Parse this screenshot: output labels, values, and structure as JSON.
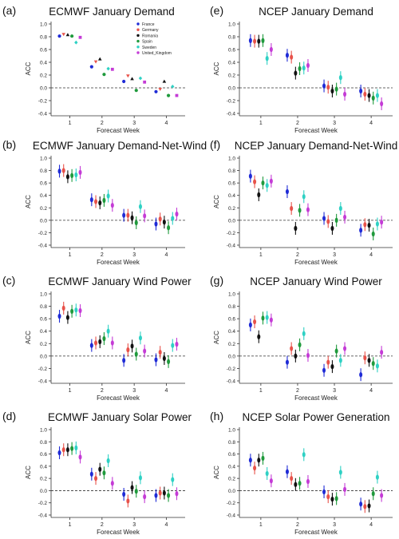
{
  "chart_data": [
    {
      "panel_label": "(a)",
      "title": "ECMWF January Demand",
      "type": "scatter",
      "style": "markers",
      "categories": [
        "1",
        "2",
        "3",
        "4"
      ],
      "xlabel": "Forecast Week",
      "ylabel": "ACC",
      "ylim": [
        -0.4,
        1.0
      ],
      "yticks": [
        -0.4,
        -0.2,
        0.0,
        0.2,
        0.4,
        0.6,
        0.8,
        1.0
      ],
      "zero_line": "dashed",
      "legend": {
        "position": "top-right",
        "entries": [
          "France",
          "Germany",
          "Romania",
          "Spain",
          "Sweden",
          "United_Kingdom"
        ]
      },
      "series": [
        {
          "name": "France",
          "values": [
            0.81,
            0.33,
            0.1,
            -0.06
          ]
        },
        {
          "name": "Germany",
          "values": [
            0.84,
            0.41,
            0.19,
            -0.02
          ]
        },
        {
          "name": "Romania",
          "values": [
            0.83,
            0.45,
            0.14,
            0.1
          ]
        },
        {
          "name": "Spain",
          "values": [
            0.81,
            0.21,
            -0.04,
            -0.12
          ]
        },
        {
          "name": "Sweden",
          "values": [
            0.71,
            0.3,
            0.15,
            0.02
          ]
        },
        {
          "name": "United_Kingdom",
          "values": [
            0.79,
            0.29,
            0.09,
            -0.12
          ]
        }
      ]
    },
    {
      "panel_label": "(e)",
      "title": "NCEP January Demand",
      "type": "scatter",
      "style": "errorbar",
      "categories": [
        "1",
        "2",
        "3",
        "4"
      ],
      "xlabel": "Forecast Week",
      "ylabel": "ACC",
      "ylim": [
        -0.4,
        1.0
      ],
      "yticks": [
        -0.4,
        -0.2,
        0.0,
        0.2,
        0.4,
        0.6,
        0.8,
        1.0
      ],
      "zero_line": "dashed",
      "series": [
        {
          "values": [
            0.74,
            0.51,
            0.03,
            -0.05
          ]
        },
        {
          "values": [
            0.73,
            0.48,
            0.01,
            -0.1
          ]
        },
        {
          "values": [
            0.73,
            0.23,
            -0.05,
            -0.12
          ]
        },
        {
          "values": [
            0.74,
            0.3,
            -0.02,
            -0.16
          ]
        },
        {
          "values": [
            0.46,
            0.31,
            0.16,
            -0.12
          ]
        },
        {
          "values": [
            0.6,
            0.35,
            -0.1,
            -0.25
          ]
        }
      ]
    },
    {
      "panel_label": "(b)",
      "title": "ECMWF January Demand-Net-Wind",
      "type": "scatter",
      "style": "errorbar",
      "categories": [
        "1",
        "2",
        "3",
        "4"
      ],
      "xlabel": "Forecast Week",
      "ylabel": "ACC",
      "ylim": [
        -0.4,
        1.0
      ],
      "yticks": [
        -0.4,
        -0.2,
        0.0,
        0.2,
        0.4,
        0.6,
        0.8,
        1.0
      ],
      "zero_line": "dashed",
      "series": [
        {
          "values": [
            0.79,
            0.33,
            0.08,
            -0.06
          ]
        },
        {
          "values": [
            0.8,
            0.3,
            0.08,
            0.02
          ]
        },
        {
          "values": [
            0.7,
            0.28,
            0.04,
            -0.03
          ]
        },
        {
          "values": [
            0.72,
            0.32,
            -0.04,
            -0.12
          ]
        },
        {
          "values": [
            0.73,
            0.39,
            0.22,
            0.03
          ]
        },
        {
          "values": [
            0.77,
            0.24,
            0.07,
            0.1
          ]
        }
      ]
    },
    {
      "panel_label": "(f)",
      "title": "NCEP January Demand-Net-Wind",
      "type": "scatter",
      "style": "errorbar",
      "categories": [
        "1",
        "2",
        "3",
        "4"
      ],
      "xlabel": "Forecast Week",
      "ylabel": "ACC",
      "ylim": [
        -0.4,
        1.0
      ],
      "yticks": [
        -0.4,
        -0.2,
        0.0,
        0.2,
        0.4,
        0.6,
        0.8,
        1.0
      ],
      "zero_line": "dashed",
      "series": [
        {
          "values": [
            0.71,
            0.46,
            0.03,
            -0.16
          ]
        },
        {
          "values": [
            0.62,
            0.19,
            -0.02,
            -0.07
          ]
        },
        {
          "values": [
            0.41,
            -0.13,
            -0.13,
            -0.08
          ]
        },
        {
          "values": [
            0.6,
            0.16,
            0.0,
            -0.22
          ]
        },
        {
          "values": [
            0.56,
            0.38,
            0.19,
            -0.06
          ]
        },
        {
          "values": [
            0.63,
            0.17,
            0.05,
            -0.03
          ]
        }
      ]
    },
    {
      "panel_label": "(c)",
      "title": "ECMWF January Wind Power",
      "type": "scatter",
      "style": "errorbar",
      "categories": [
        "1",
        "2",
        "3",
        "4"
      ],
      "xlabel": "Forecast Week",
      "ylabel": "ACC",
      "ylim": [
        -0.4,
        1.0
      ],
      "yticks": [
        -0.4,
        -0.2,
        0.0,
        0.2,
        0.4,
        0.6,
        0.8,
        1.0
      ],
      "zero_line": "dashed",
      "series": [
        {
          "values": [
            0.64,
            0.17,
            -0.07,
            -0.06
          ]
        },
        {
          "values": [
            0.77,
            0.21,
            0.1,
            0.06
          ]
        },
        {
          "values": [
            0.62,
            0.23,
            0.16,
            -0.04
          ]
        },
        {
          "values": [
            0.72,
            0.28,
            0.03,
            -0.09
          ]
        },
        {
          "values": [
            0.74,
            0.4,
            0.29,
            0.17
          ]
        },
        {
          "values": [
            0.73,
            0.21,
            0.08,
            0.19
          ]
        }
      ]
    },
    {
      "panel_label": "(g)",
      "title": "NCEP January Wind Power",
      "type": "scatter",
      "style": "errorbar",
      "categories": [
        "1",
        "2",
        "3",
        "4"
      ],
      "xlabel": "Forecast Week",
      "ylabel": "ACC",
      "ylim": [
        -0.4,
        1.0
      ],
      "yticks": [
        -0.4,
        -0.2,
        0.0,
        0.2,
        0.4,
        0.6,
        0.8,
        1.0
      ],
      "zero_line": "dashed",
      "series": [
        {
          "values": [
            0.5,
            -0.1,
            -0.23,
            -0.3
          ]
        },
        {
          "values": [
            0.55,
            0.12,
            -0.1,
            -0.03
          ]
        },
        {
          "values": [
            0.31,
            0.0,
            -0.17,
            -0.07
          ]
        },
        {
          "values": [
            0.61,
            0.18,
            0.08,
            -0.12
          ]
        },
        {
          "values": [
            0.62,
            0.36,
            -0.07,
            -0.16
          ]
        },
        {
          "values": [
            0.58,
            0.01,
            0.12,
            0.06
          ]
        }
      ]
    },
    {
      "panel_label": "(d)",
      "title": "ECMWF January Solar Power",
      "type": "scatter",
      "style": "errorbar",
      "categories": [
        "1",
        "2",
        "3",
        "4"
      ],
      "xlabel": "Forecast Week",
      "ylabel": "ACC",
      "ylim": [
        -0.4,
        1.0
      ],
      "yticks": [
        -0.4,
        -0.2,
        0.0,
        0.2,
        0.4,
        0.6,
        0.8,
        1.0
      ],
      "zero_line": "dashed",
      "series": [
        {
          "values": [
            0.62,
            0.27,
            -0.06,
            -0.08
          ]
        },
        {
          "values": [
            0.67,
            0.2,
            -0.17,
            -0.04
          ]
        },
        {
          "values": [
            0.67,
            0.35,
            0.05,
            -0.04
          ]
        },
        {
          "values": [
            0.69,
            0.29,
            -0.01,
            -0.08
          ]
        },
        {
          "values": [
            0.7,
            0.49,
            0.21,
            0.18
          ]
        },
        {
          "values": [
            0.55,
            0.12,
            -0.1,
            -0.05
          ]
        }
      ]
    },
    {
      "panel_label": "(h)",
      "title": "NCEP Solar Power Generation",
      "type": "scatter",
      "style": "errorbar",
      "categories": [
        "1",
        "2",
        "3",
        "4"
      ],
      "xlabel": "Forecast Week",
      "ylabel": "ACC",
      "ylim": [
        -0.4,
        1.0
      ],
      "yticks": [
        -0.4,
        -0.2,
        0.0,
        0.2,
        0.4,
        0.6,
        0.8,
        1.0
      ],
      "zero_line": "dashed",
      "series": [
        {
          "values": [
            0.5,
            0.31,
            -0.02,
            -0.22
          ]
        },
        {
          "values": [
            0.37,
            0.2,
            -0.1,
            -0.26
          ]
        },
        {
          "values": [
            0.5,
            0.1,
            -0.14,
            -0.25
          ]
        },
        {
          "values": [
            0.53,
            0.12,
            -0.13,
            -0.05
          ]
        },
        {
          "values": [
            0.28,
            0.59,
            0.3,
            0.22
          ]
        },
        {
          "values": [
            0.16,
            0.15,
            0.02,
            -0.08
          ]
        }
      ]
    }
  ],
  "colors": [
    "#1f2bd6",
    "#e8524a",
    "#111111",
    "#1f9a3c",
    "#2ed1c4",
    "#c43bd6"
  ]
}
